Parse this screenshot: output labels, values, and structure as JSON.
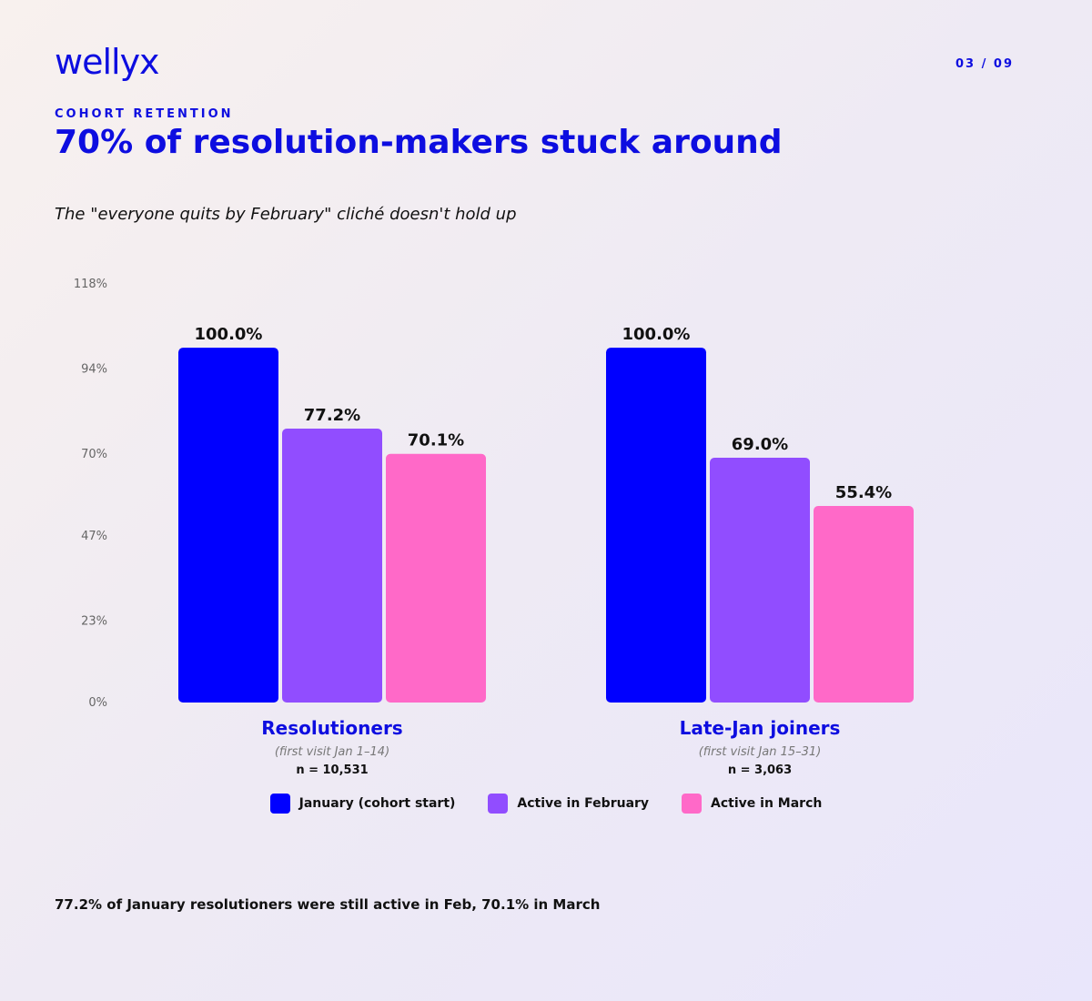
{
  "brand": {
    "logo_text": "wellyx",
    "page_indicator": "03 / 09"
  },
  "header": {
    "eyebrow": "COHORT RETENTION",
    "title": "70% of resolution-makers stuck around",
    "subtitle": "The \"everyone quits by February\" cliché doesn't hold up"
  },
  "chart_data": {
    "type": "bar",
    "title": "70% of resolution-makers stuck around",
    "ylim": [
      0,
      118
    ],
    "yticks": [
      "0%",
      "23%",
      "47%",
      "70%",
      "94%",
      "118%"
    ],
    "ytick_values": [
      0,
      23,
      47,
      70,
      94,
      118
    ],
    "grid": false,
    "legend_position": "bottom-center",
    "categories": [
      {
        "name": "Resolutioners",
        "note": "(first visit Jan 1–14)",
        "n": "n = 10,531"
      },
      {
        "name": "Late-Jan joiners",
        "note": "(first visit Jan 15–31)",
        "n": "n = 3,063"
      }
    ],
    "series": [
      {
        "name": "January (cohort start)",
        "color": "#0000ff",
        "values": [
          100.0,
          100.0
        ],
        "labels": [
          "100.0%",
          "100.0%"
        ]
      },
      {
        "name": "Active in February",
        "color": "#914dff",
        "values": [
          77.2,
          69.0
        ],
        "labels": [
          "77.2%",
          "69.0%"
        ]
      },
      {
        "name": "Active in March",
        "color": "#ff69c8",
        "values": [
          70.1,
          55.4
        ],
        "labels": [
          "70.1%",
          "55.4%"
        ]
      }
    ]
  },
  "legend": [
    {
      "label": "January (cohort start)",
      "color": "#0000ff"
    },
    {
      "label": "Active in February",
      "color": "#914dff"
    },
    {
      "label": "Active in March",
      "color": "#ff69c8"
    }
  ],
  "footnote": "77.2% of January resolutioners were still active in Feb, 70.1% in March"
}
